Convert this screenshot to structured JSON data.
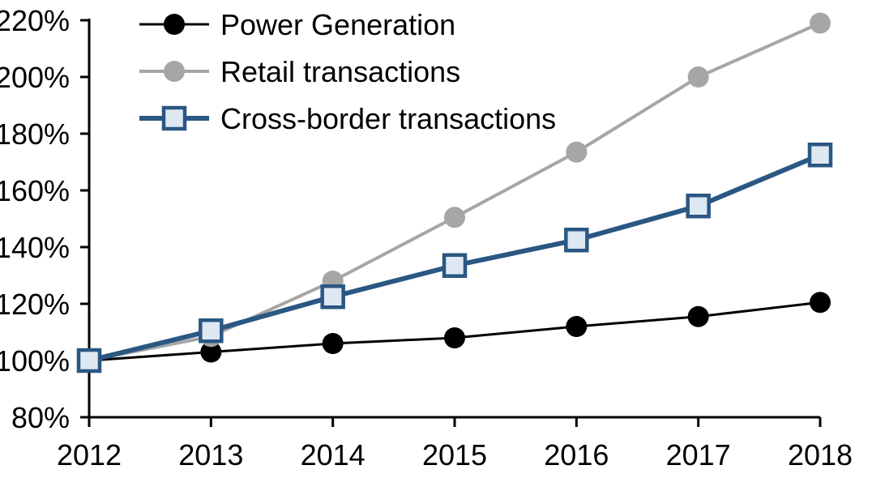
{
  "chart_data": {
    "type": "line",
    "title": "",
    "xlabel": "",
    "ylabel": "",
    "x": [
      2012,
      2013,
      2014,
      2015,
      2016,
      2017,
      2018
    ],
    "x_tick_labels": [
      "2012",
      "2013",
      "2014",
      "2015",
      "2016",
      "2017",
      "2018"
    ],
    "y_axis": {
      "min": 80,
      "max": 220,
      "step": 20,
      "unit": "%",
      "tick_labels": [
        "80%",
        "100%",
        "120%",
        "140%",
        "160%",
        "180%",
        "200%",
        "220%"
      ]
    },
    "grid": false,
    "legend_position": "top-left-inside",
    "series": [
      {
        "name": "Power Generation",
        "values": [
          100,
          103,
          106,
          108,
          112,
          115.5,
          120.5
        ],
        "color": "#000000",
        "marker": "circle",
        "marker_fill": "#000000",
        "line_width": 3
      },
      {
        "name": "Retail transactions",
        "values": [
          100,
          108.5,
          128,
          150.5,
          173.5,
          200,
          219
        ],
        "color": "#A6A6A6",
        "marker": "circle",
        "marker_fill": "#A6A6A6",
        "line_width": 4
      },
      {
        "name": "Cross-border transactions",
        "values": [
          100,
          110.5,
          122.5,
          133.5,
          142.5,
          154.5,
          172.5
        ],
        "color": "#2A5783",
        "marker": "square",
        "marker_fill": "#DEE8F3",
        "line_width": 6
      }
    ],
    "axis_color": "#000000",
    "background_color": "#FFFFFF"
  }
}
